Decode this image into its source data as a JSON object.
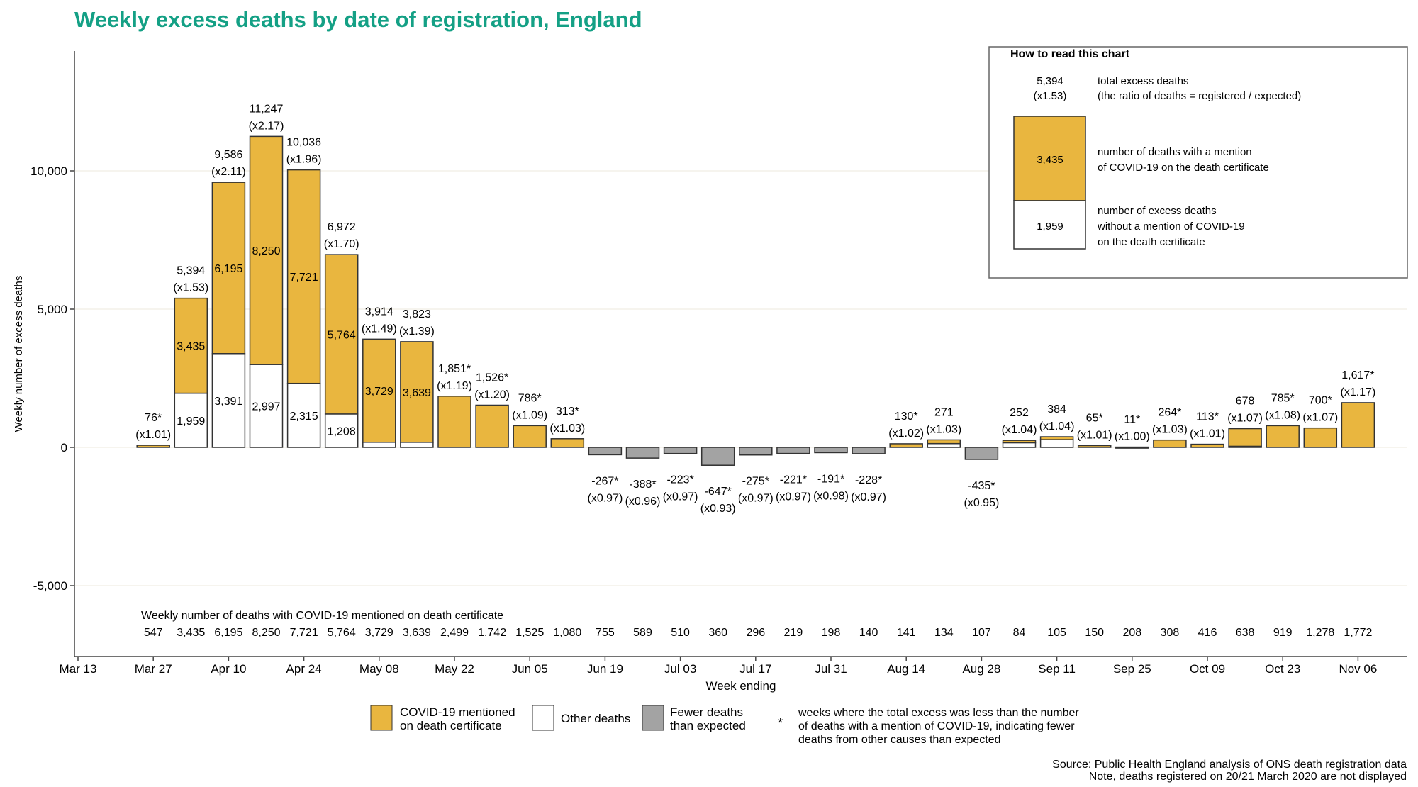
{
  "chart_data": {
    "type": "bar",
    "stacked": true,
    "title": "Weekly excess deaths by date of registration, England",
    "xlabel": "Week ending",
    "ylabel": "Weekly number of excess deaths",
    "ylim": [
      -7500,
      14000
    ],
    "yticks": [
      {
        "value": 10000,
        "label": "10,000"
      },
      {
        "value": 5000,
        "label": "5,000"
      },
      {
        "value": 0,
        "label": "0"
      },
      {
        "value": -5000,
        "label": "-5,000"
      }
    ],
    "grid": "horizontal",
    "x_start_label": "Mar 13",
    "xticks": [
      "Mar 13",
      "Mar 27",
      "Apr 10",
      "Apr 24",
      "May 08",
      "May 22",
      "Jun 05",
      "Jun 19",
      "Jul 03",
      "Jul 17",
      "Jul 31",
      "Aug 14",
      "Aug 28",
      "Sep 11",
      "Sep 25",
      "Oct 09",
      "Oct 23",
      "Nov 06",
      "Nov"
    ],
    "bar_start_week_index": 2,
    "colors": {
      "covid": "#E9B63F",
      "other": "#FFFFFF",
      "fewer": "#A3A3A3",
      "title": "#14A085"
    },
    "bars": [
      {
        "total": 76,
        "label": "76*",
        "ratio": "(x1.01)",
        "covid": 547
      },
      {
        "total": 5394,
        "label": "5,394",
        "ratio": "(x1.53)",
        "covid": 3435,
        "covid_label": "3,435",
        "other_label": "1,959"
      },
      {
        "total": 9586,
        "label": "9,586",
        "ratio": "(x2.11)",
        "covid": 6195,
        "covid_label": "6,195",
        "other_label": "3,391"
      },
      {
        "total": 11247,
        "label": "11,247",
        "ratio": "(x2.17)",
        "covid": 8250,
        "covid_label": "8,250",
        "other_label": "2,997"
      },
      {
        "total": 10036,
        "label": "10,036",
        "ratio": "(x1.96)",
        "covid": 7721,
        "covid_label": "7,721",
        "other_label": "2,315"
      },
      {
        "total": 6972,
        "label": "6,972",
        "ratio": "(x1.70)",
        "covid": 5764,
        "covid_label": "5,764",
        "other_label": "1,208"
      },
      {
        "total": 3914,
        "label": "3,914",
        "ratio": "(x1.49)",
        "covid": 3729,
        "covid_label": "3,729"
      },
      {
        "total": 3823,
        "label": "3,823",
        "ratio": "(x1.39)",
        "covid": 3639,
        "covid_label": "3,639"
      },
      {
        "total": 1851,
        "label": "1,851*",
        "ratio": "(x1.19)",
        "covid": 2499
      },
      {
        "total": 1526,
        "label": "1,526*",
        "ratio": "(x1.20)",
        "covid": 1742
      },
      {
        "total": 786,
        "label": "786*",
        "ratio": "(x1.09)",
        "covid": 1525
      },
      {
        "total": 313,
        "label": "313*",
        "ratio": "(x1.03)",
        "covid": 1080
      },
      {
        "total": -267,
        "label": "-267*",
        "ratio": "(x0.97)",
        "covid": 755
      },
      {
        "total": -388,
        "label": "-388*",
        "ratio": "(x0.96)",
        "covid": 589
      },
      {
        "total": -223,
        "label": "-223*",
        "ratio": "(x0.97)",
        "covid": 510
      },
      {
        "total": -647,
        "label": "-647*",
        "ratio": "(x0.93)",
        "covid": 360
      },
      {
        "total": -275,
        "label": "-275*",
        "ratio": "(x0.97)",
        "covid": 296
      },
      {
        "total": -221,
        "label": "-221*",
        "ratio": "(x0.97)",
        "covid": 219
      },
      {
        "total": -191,
        "label": "-191*",
        "ratio": "(x0.98)",
        "covid": 198
      },
      {
        "total": -228,
        "label": "-228*",
        "ratio": "(x0.97)",
        "covid": 140
      },
      {
        "total": 130,
        "label": "130*",
        "ratio": "(x1.02)",
        "covid": 141
      },
      {
        "total": 271,
        "label": "271",
        "ratio": "(x1.03)",
        "covid": 134
      },
      {
        "total": -435,
        "label": "-435*",
        "ratio": "(x0.95)",
        "covid": 107
      },
      {
        "total": 252,
        "label": "252",
        "ratio": "(x1.04)",
        "covid": 84
      },
      {
        "total": 384,
        "label": "384",
        "ratio": "(x1.04)",
        "covid": 105
      },
      {
        "total": 65,
        "label": "65*",
        "ratio": "(x1.01)",
        "covid": 150
      },
      {
        "total": 11,
        "label": "11*",
        "ratio": "(x1.00)",
        "covid": 208
      },
      {
        "total": 264,
        "label": "264*",
        "ratio": "(x1.03)",
        "covid": 308
      },
      {
        "total": 113,
        "label": "113*",
        "ratio": "(x1.01)",
        "covid": 416
      },
      {
        "total": 678,
        "label": "678",
        "ratio": "(x1.07)",
        "covid": 638
      },
      {
        "total": 785,
        "label": "785*",
        "ratio": "(x1.08)",
        "covid": 919
      },
      {
        "total": 700,
        "label": "700*",
        "ratio": "(x1.07)",
        "covid": 1278
      },
      {
        "total": 1617,
        "label": "1,617*",
        "ratio": "(x1.17)",
        "covid": 1772
      }
    ],
    "covid_row_title": "Weekly number of deaths with COVID-19 mentioned on death certificate",
    "covid_row_labels": [
      "547",
      "3,435",
      "6,195",
      "8,250",
      "7,721",
      "5,764",
      "3,729",
      "3,639",
      "2,499",
      "1,742",
      "1,525",
      "1,080",
      "755",
      "589",
      "510",
      "360",
      "296",
      "219",
      "198",
      "140",
      "141",
      "134",
      "107",
      "84",
      "105",
      "150",
      "208",
      "308",
      "416",
      "638",
      "919",
      "1,278",
      "1,772"
    ]
  },
  "how_to_read": {
    "title": "How to read this chart",
    "total": "5,394",
    "ratio": "(x1.53)",
    "total_desc_1": "total excess deaths",
    "total_desc_2": "(the ratio of deaths = registered / expected)",
    "covid_value": "3,435",
    "covid_desc_1": "number of deaths with a mention",
    "covid_desc_2": "of COVID-19 on the death certificate",
    "other_value": "1,959",
    "other_desc_1": "number of excess deaths",
    "other_desc_2": "without a mention of COVID-19",
    "other_desc_3": "on the death certificate"
  },
  "legend": {
    "covid_1": "COVID-19 mentioned",
    "covid_2": "on death certificate",
    "other": "Other deaths",
    "fewer_1": "Fewer deaths",
    "fewer_2": "than expected",
    "star": "*",
    "star_1": "weeks where the total excess was less than the number",
    "star_2": "of deaths with a mention of COVID-19, indicating fewer",
    "star_3": "deaths from other causes than expected"
  },
  "source": {
    "line1": "Source: Public Health England analysis of ONS death registration data",
    "line2": "Note, deaths registered on 20/21 March 2020 are not displayed"
  }
}
